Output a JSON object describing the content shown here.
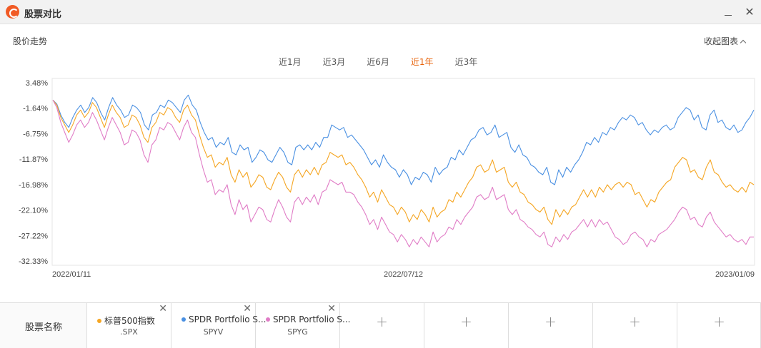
{
  "window": {
    "title": "股票对比",
    "minimize_icon": "minimize-icon",
    "close_glyph": "✕"
  },
  "section": {
    "title": "股价走势",
    "collapse_label": "收起图表"
  },
  "range_tabs": [
    {
      "label": "近1月",
      "active": false
    },
    {
      "label": "近3月",
      "active": false
    },
    {
      "label": "近6月",
      "active": false
    },
    {
      "label": "近1年",
      "active": true
    },
    {
      "label": "近3年",
      "active": false
    }
  ],
  "colors": {
    "accent": "#e8630a",
    "spx": "#f5a623",
    "spyv": "#4a90e2",
    "spyg": "#e07cc6"
  },
  "chart_data": {
    "type": "line",
    "y_tick_labels": [
      "3.48%",
      "-1.64%",
      "-6.75%",
      "-11.87%",
      "-16.98%",
      "-22.10%",
      "-27.22%",
      "-32.33%"
    ],
    "y_ticks": [
      3.48,
      -1.64,
      -6.75,
      -11.87,
      -16.98,
      -22.1,
      -27.22,
      -32.33
    ],
    "ylim": [
      -32.33,
      3.48
    ],
    "x_tick_labels": [
      "2022/01/11",
      "2022/07/12",
      "2023/01/09"
    ],
    "series": [
      {
        "name": "SPDR Portfolio S...",
        "color": "#4a90e2",
        "values": [
          0.0,
          -0.8,
          -3.0,
          -4.5,
          -5.5,
          -3.5,
          -2.0,
          -1.0,
          -2.5,
          -1.5,
          0.5,
          -0.5,
          -2.5,
          -4.0,
          -1.5,
          0.5,
          -1.0,
          -2.0,
          -3.5,
          -3.0,
          -1.0,
          -1.5,
          -2.5,
          -5.0,
          -6.0,
          -3.0,
          -2.5,
          -1.0,
          -1.5,
          0.0,
          -0.5,
          -1.5,
          -2.5,
          0.0,
          1.0,
          -1.0,
          -2.0,
          -4.5,
          -6.5,
          -8.0,
          -7.5,
          -9.5,
          -8.5,
          -9.0,
          -7.5,
          -10.5,
          -11.0,
          -9.0,
          -10.0,
          -9.5,
          -12.5,
          -11.5,
          -10.0,
          -10.5,
          -12.0,
          -12.5,
          -11.0,
          -9.5,
          -10.5,
          -12.5,
          -13.0,
          -9.5,
          -9.0,
          -10.0,
          -9.0,
          -10.0,
          -8.5,
          -9.5,
          -7.5,
          -7.5,
          -5.0,
          -5.5,
          -6.0,
          -5.5,
          -7.5,
          -7.0,
          -8.0,
          -9.0,
          -10.0,
          -11.5,
          -13.0,
          -12.0,
          -13.5,
          -11.0,
          -12.5,
          -13.5,
          -14.0,
          -15.5,
          -14.0,
          -15.0,
          -17.0,
          -15.5,
          -16.0,
          -14.5,
          -15.0,
          -16.5,
          -13.5,
          -15.0,
          -14.0,
          -13.5,
          -11.5,
          -12.0,
          -10.0,
          -11.0,
          -9.5,
          -8.0,
          -7.5,
          -6.0,
          -5.5,
          -7.0,
          -6.5,
          -5.0,
          -7.5,
          -7.0,
          -6.5,
          -9.5,
          -10.5,
          -9.0,
          -11.0,
          -11.5,
          -13.0,
          -13.5,
          -14.5,
          -15.0,
          -13.5,
          -16.5,
          -17.0,
          -14.0,
          -15.5,
          -13.5,
          -14.5,
          -13.0,
          -12.0,
          -10.5,
          -8.5,
          -9.0,
          -7.5,
          -8.5,
          -6.5,
          -7.0,
          -5.5,
          -6.0,
          -4.5,
          -3.5,
          -4.0,
          -3.0,
          -3.5,
          -5.0,
          -4.5,
          -6.0,
          -7.0,
          -6.0,
          -6.5,
          -5.5,
          -5.0,
          -6.0,
          -5.5,
          -3.5,
          -2.5,
          -1.5,
          -2.0,
          -4.0,
          -3.0,
          -5.5,
          -6.0,
          -3.0,
          -2.0,
          -4.5,
          -4.0,
          -5.5,
          -6.0,
          -5.0,
          -6.5,
          -6.0,
          -4.5,
          -3.5,
          -2.0
        ]
      },
      {
        "name": "标普500指数",
        "color": "#f5a623",
        "values": [
          0.0,
          -1.0,
          -3.5,
          -5.0,
          -6.5,
          -5.0,
          -3.0,
          -2.0,
          -3.5,
          -2.5,
          -0.5,
          -1.5,
          -3.5,
          -5.5,
          -3.0,
          -1.0,
          -2.5,
          -3.5,
          -5.5,
          -5.0,
          -3.0,
          -3.5,
          -5.0,
          -7.5,
          -8.5,
          -5.5,
          -4.5,
          -2.5,
          -3.0,
          -1.5,
          -2.0,
          -3.5,
          -4.5,
          -2.0,
          -1.0,
          -3.0,
          -4.0,
          -7.0,
          -9.5,
          -11.5,
          -11.0,
          -13.5,
          -12.5,
          -13.0,
          -11.5,
          -15.0,
          -16.5,
          -14.0,
          -15.5,
          -14.5,
          -17.5,
          -16.5,
          -15.0,
          -15.5,
          -17.5,
          -18.0,
          -16.0,
          -14.5,
          -15.5,
          -17.5,
          -18.5,
          -15.0,
          -14.0,
          -15.5,
          -14.0,
          -15.0,
          -13.5,
          -15.0,
          -13.0,
          -12.5,
          -10.5,
          -11.0,
          -11.5,
          -11.0,
          -13.0,
          -12.5,
          -13.5,
          -15.0,
          -16.0,
          -17.5,
          -19.5,
          -18.5,
          -20.5,
          -18.0,
          -19.5,
          -21.0,
          -21.5,
          -23.0,
          -21.5,
          -22.5,
          -24.5,
          -23.0,
          -24.0,
          -22.0,
          -23.0,
          -24.5,
          -21.5,
          -23.5,
          -22.5,
          -22.0,
          -20.0,
          -20.5,
          -18.5,
          -19.5,
          -18.0,
          -16.5,
          -15.5,
          -13.5,
          -13.0,
          -14.5,
          -14.0,
          -12.0,
          -14.5,
          -14.0,
          -13.5,
          -16.5,
          -17.5,
          -16.5,
          -18.5,
          -19.0,
          -20.5,
          -21.0,
          -22.0,
          -22.5,
          -21.5,
          -24.0,
          -25.0,
          -22.0,
          -23.5,
          -22.0,
          -23.0,
          -21.5,
          -21.0,
          -19.5,
          -18.0,
          -19.5,
          -18.0,
          -19.5,
          -17.5,
          -18.5,
          -17.0,
          -18.0,
          -17.0,
          -16.5,
          -17.5,
          -16.5,
          -17.0,
          -19.0,
          -18.5,
          -20.0,
          -21.5,
          -20.0,
          -20.5,
          -18.5,
          -17.5,
          -16.5,
          -16.0,
          -13.5,
          -12.5,
          -11.5,
          -12.0,
          -14.5,
          -14.0,
          -15.5,
          -16.0,
          -13.5,
          -12.0,
          -14.5,
          -15.0,
          -16.5,
          -17.5,
          -17.0,
          -18.0,
          -18.5,
          -17.5,
          -18.5,
          -16.5,
          -17.0
        ]
      },
      {
        "name": "SPDR Portfolio S...",
        "color": "#e07cc6",
        "values": [
          0.0,
          -1.5,
          -4.5,
          -6.5,
          -8.5,
          -7.0,
          -5.0,
          -4.0,
          -5.5,
          -4.5,
          -2.5,
          -4.0,
          -6.0,
          -8.0,
          -5.5,
          -3.5,
          -5.0,
          -6.5,
          -9.0,
          -8.5,
          -6.0,
          -6.5,
          -8.0,
          -11.0,
          -12.5,
          -9.0,
          -8.0,
          -5.5,
          -6.0,
          -4.5,
          -5.0,
          -6.5,
          -8.0,
          -5.5,
          -4.0,
          -6.5,
          -7.5,
          -11.0,
          -14.0,
          -16.5,
          -16.0,
          -19.0,
          -18.0,
          -18.5,
          -17.0,
          -21.0,
          -23.0,
          -20.0,
          -22.0,
          -21.0,
          -24.5,
          -23.0,
          -21.5,
          -22.0,
          -24.0,
          -24.5,
          -22.0,
          -20.0,
          -21.5,
          -23.5,
          -24.5,
          -20.5,
          -19.5,
          -21.0,
          -19.5,
          -20.5,
          -19.0,
          -21.0,
          -18.5,
          -18.0,
          -16.0,
          -16.5,
          -17.0,
          -16.5,
          -18.5,
          -18.5,
          -19.0,
          -20.5,
          -21.5,
          -23.0,
          -25.0,
          -24.0,
          -26.0,
          -23.5,
          -25.0,
          -26.5,
          -27.0,
          -28.5,
          -27.0,
          -28.0,
          -29.5,
          -28.0,
          -29.0,
          -27.5,
          -28.5,
          -29.5,
          -26.5,
          -28.5,
          -27.5,
          -27.0,
          -25.5,
          -26.0,
          -24.0,
          -25.0,
          -23.5,
          -22.5,
          -21.5,
          -19.5,
          -19.0,
          -20.0,
          -19.5,
          -17.5,
          -20.0,
          -19.5,
          -19.0,
          -22.0,
          -23.0,
          -22.0,
          -24.0,
          -24.5,
          -25.5,
          -26.0,
          -27.0,
          -27.5,
          -26.5,
          -29.0,
          -29.5,
          -27.5,
          -28.5,
          -27.0,
          -28.0,
          -26.5,
          -26.0,
          -25.0,
          -24.0,
          -25.5,
          -24.0,
          -25.5,
          -24.0,
          -25.0,
          -24.5,
          -26.0,
          -27.5,
          -28.0,
          -29.0,
          -28.5,
          -27.0,
          -26.5,
          -27.5,
          -28.0,
          -29.5,
          -28.0,
          -28.5,
          -27.0,
          -26.5,
          -26.0,
          -25.0,
          -24.0,
          -22.5,
          -21.5,
          -22.0,
          -24.0,
          -23.5,
          -25.0,
          -25.5,
          -23.5,
          -22.5,
          -24.5,
          -25.5,
          -26.5,
          -27.5,
          -27.0,
          -28.0,
          -28.5,
          -28.0,
          -29.0,
          -27.5,
          -27.5
        ]
      }
    ]
  },
  "table": {
    "header_label": "股票名称",
    "stocks": [
      {
        "name": "标普500指数",
        "code": ".SPX",
        "color": "#f5a623"
      },
      {
        "name": "SPDR Portfolio S...",
        "code": "SPYV",
        "color": "#4a90e2"
      },
      {
        "name": "SPDR Portfolio S...",
        "code": "SPYG",
        "color": "#e07cc6"
      }
    ],
    "remove_glyph": "✕",
    "add_glyph": "+",
    "empty_slots": 5
  }
}
